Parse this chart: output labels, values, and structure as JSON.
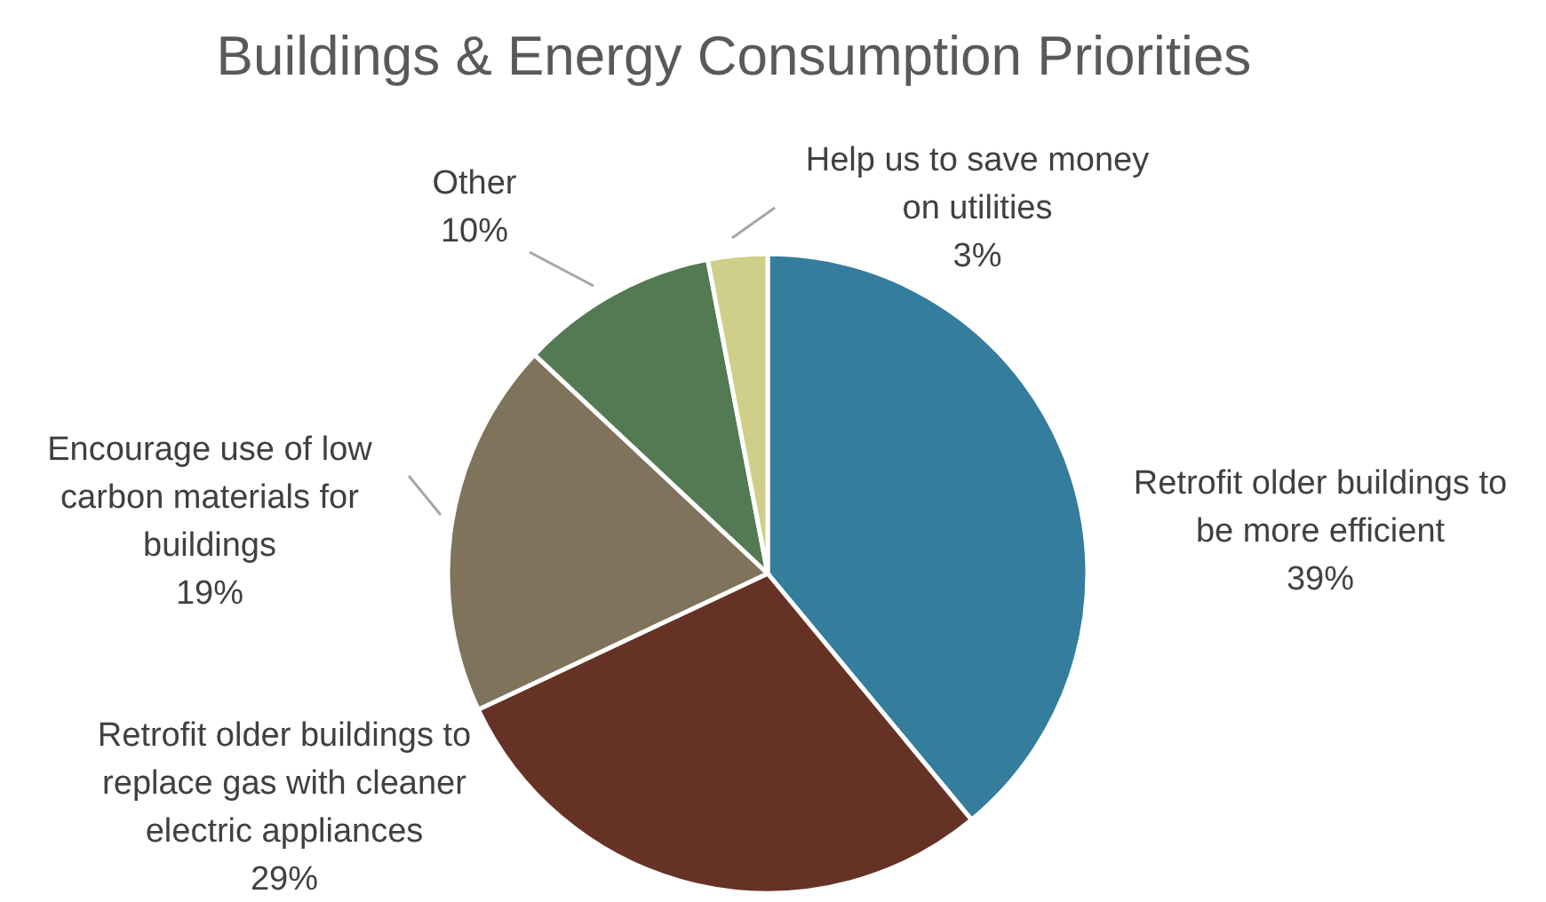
{
  "chart_data": {
    "type": "pie",
    "title": "Buildings & Energy Consumption Priorities",
    "categories": [
      "Retrofit older buildings to be more efficient",
      "Retrofit older buildings to replace gas with cleaner electric appliances",
      "Encourage use of low carbon materials for buildings",
      "Other",
      "Help us to save money on utilities"
    ],
    "values": [
      39,
      29,
      19,
      10,
      3
    ],
    "colors": [
      "#357d9c",
      "#673226",
      "#80735c",
      "#537a52",
      "#cfcf8a"
    ],
    "value_labels": [
      "39%",
      "29%",
      "19%",
      "10%",
      "3%"
    ]
  }
}
